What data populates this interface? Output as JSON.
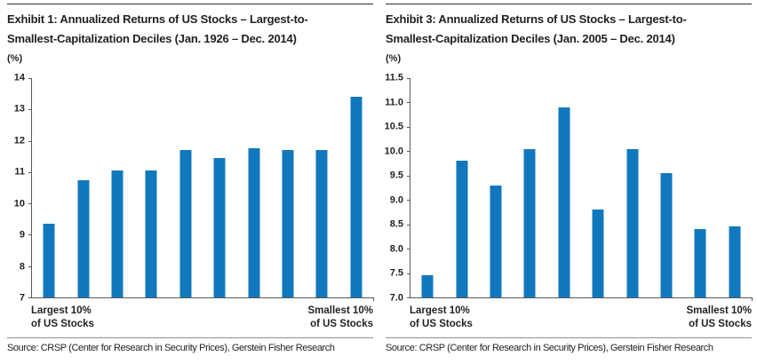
{
  "panels": [
    {
      "title_line1": "Exhibit 1: Annualized Returns of US Stocks – Largest-to-",
      "title_line2": "Smallest-Capitalization Deciles (Jan. 1926 – Dec. 2014)",
      "unit_label": "(%)",
      "x_left_label_line1": "Largest 10%",
      "x_left_label_line2": "of US Stocks",
      "x_right_label_line1": "Smallest 10%",
      "x_right_label_line2": "of US Stocks",
      "source": "Source: CRSP (Center for Research in Security Prices), Gerstein Fisher Research"
    },
    {
      "title_line1": "Exhibit 3: Annualized Returns of US Stocks – Largest-to-",
      "title_line2": "Smallest-Capitalization Deciles (Jan. 2005 – Dec. 2014)",
      "unit_label": "(%)",
      "x_left_label_line1": "Largest 10%",
      "x_left_label_line2": "of US Stocks",
      "x_right_label_line1": "Smallest 10%",
      "x_right_label_line2": "of US Stocks",
      "source": "Source: CRSP (Center for Research in Security Prices), Gerstein Fisher Research"
    }
  ],
  "chart_data": [
    {
      "type": "bar",
      "title": "Exhibit 1: Annualized Returns of US Stocks – Largest-to-Smallest-Capitalization Deciles (Jan. 1926 – Dec. 2014)",
      "categories": [
        "Decile 1 (Largest 10%)",
        "Decile 2",
        "Decile 3",
        "Decile 4",
        "Decile 5",
        "Decile 6",
        "Decile 7",
        "Decile 8",
        "Decile 9",
        "Decile 10 (Smallest 10%)"
      ],
      "values": [
        9.35,
        10.75,
        11.05,
        11.05,
        11.7,
        11.45,
        11.75,
        11.7,
        11.7,
        13.4
      ],
      "xlabel_left": "Largest 10% of US Stocks",
      "xlabel_right": "Smallest 10% of US Stocks",
      "ylabel": "(%)",
      "ylim": [
        7,
        14
      ],
      "ytick_labels": [
        "14",
        "13",
        "12",
        "11",
        "10",
        "9",
        "8",
        "7"
      ],
      "grid": false,
      "legend": false,
      "bar_color": "#1278BE"
    },
    {
      "type": "bar",
      "title": "Exhibit 3: Annualized Returns of US Stocks – Largest-to-Smallest-Capitalization Deciles (Jan. 2005 – Dec. 2014)",
      "categories": [
        "Decile 1 (Largest 10%)",
        "Decile 2",
        "Decile 3",
        "Decile 4",
        "Decile 5",
        "Decile 6",
        "Decile 7",
        "Decile 8",
        "Decile 9",
        "Decile 10 (Smallest 10%)"
      ],
      "values": [
        7.45,
        9.8,
        9.3,
        10.05,
        10.9,
        8.8,
        10.05,
        9.55,
        8.4,
        8.45
      ],
      "xlabel_left": "Largest 10% of US Stocks",
      "xlabel_right": "Smallest 10% of US Stocks",
      "ylabel": "(%)",
      "ylim": [
        7,
        11.5
      ],
      "ytick_labels": [
        "11.5",
        "11.0",
        "10.5",
        "10.0",
        "9.5",
        "9.0",
        "8.5",
        "8.0",
        "7.5",
        "7.0"
      ],
      "grid": false,
      "legend": false,
      "bar_color": "#1278BE"
    }
  ],
  "colors": {
    "bar": "#1278BE",
    "axis": "#58595B",
    "top_rule": "#2E2E30",
    "divider": "#8E9093",
    "text": "#231F20"
  }
}
